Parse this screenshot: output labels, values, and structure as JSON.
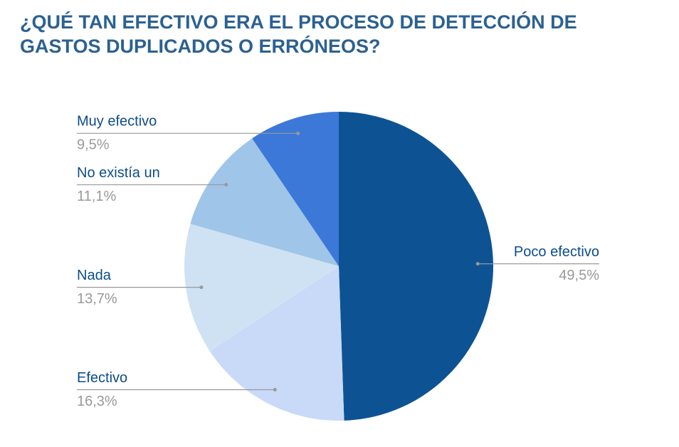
{
  "chart_data": {
    "type": "pie",
    "title": "¿QUÉ TAN EFECTIVO ERA EL PROCESO DE DETECCIÓN DE GASTOS DUPLICADOS O ERRÓNEOS?",
    "categories": [
      "Poco efectivo",
      "Efectivo",
      "Nada",
      "No existía un",
      "Muy efectivo"
    ],
    "values": [
      49.5,
      16.3,
      13.7,
      11.1,
      9.5
    ],
    "value_labels": [
      "49,5%",
      "16,3%",
      "13,7%",
      "11,1%",
      "9,5%"
    ],
    "colors": [
      "#0d5394",
      "#c9daf8",
      "#cfe2f3",
      "#9fc5e8",
      "#3c78d8"
    ]
  }
}
